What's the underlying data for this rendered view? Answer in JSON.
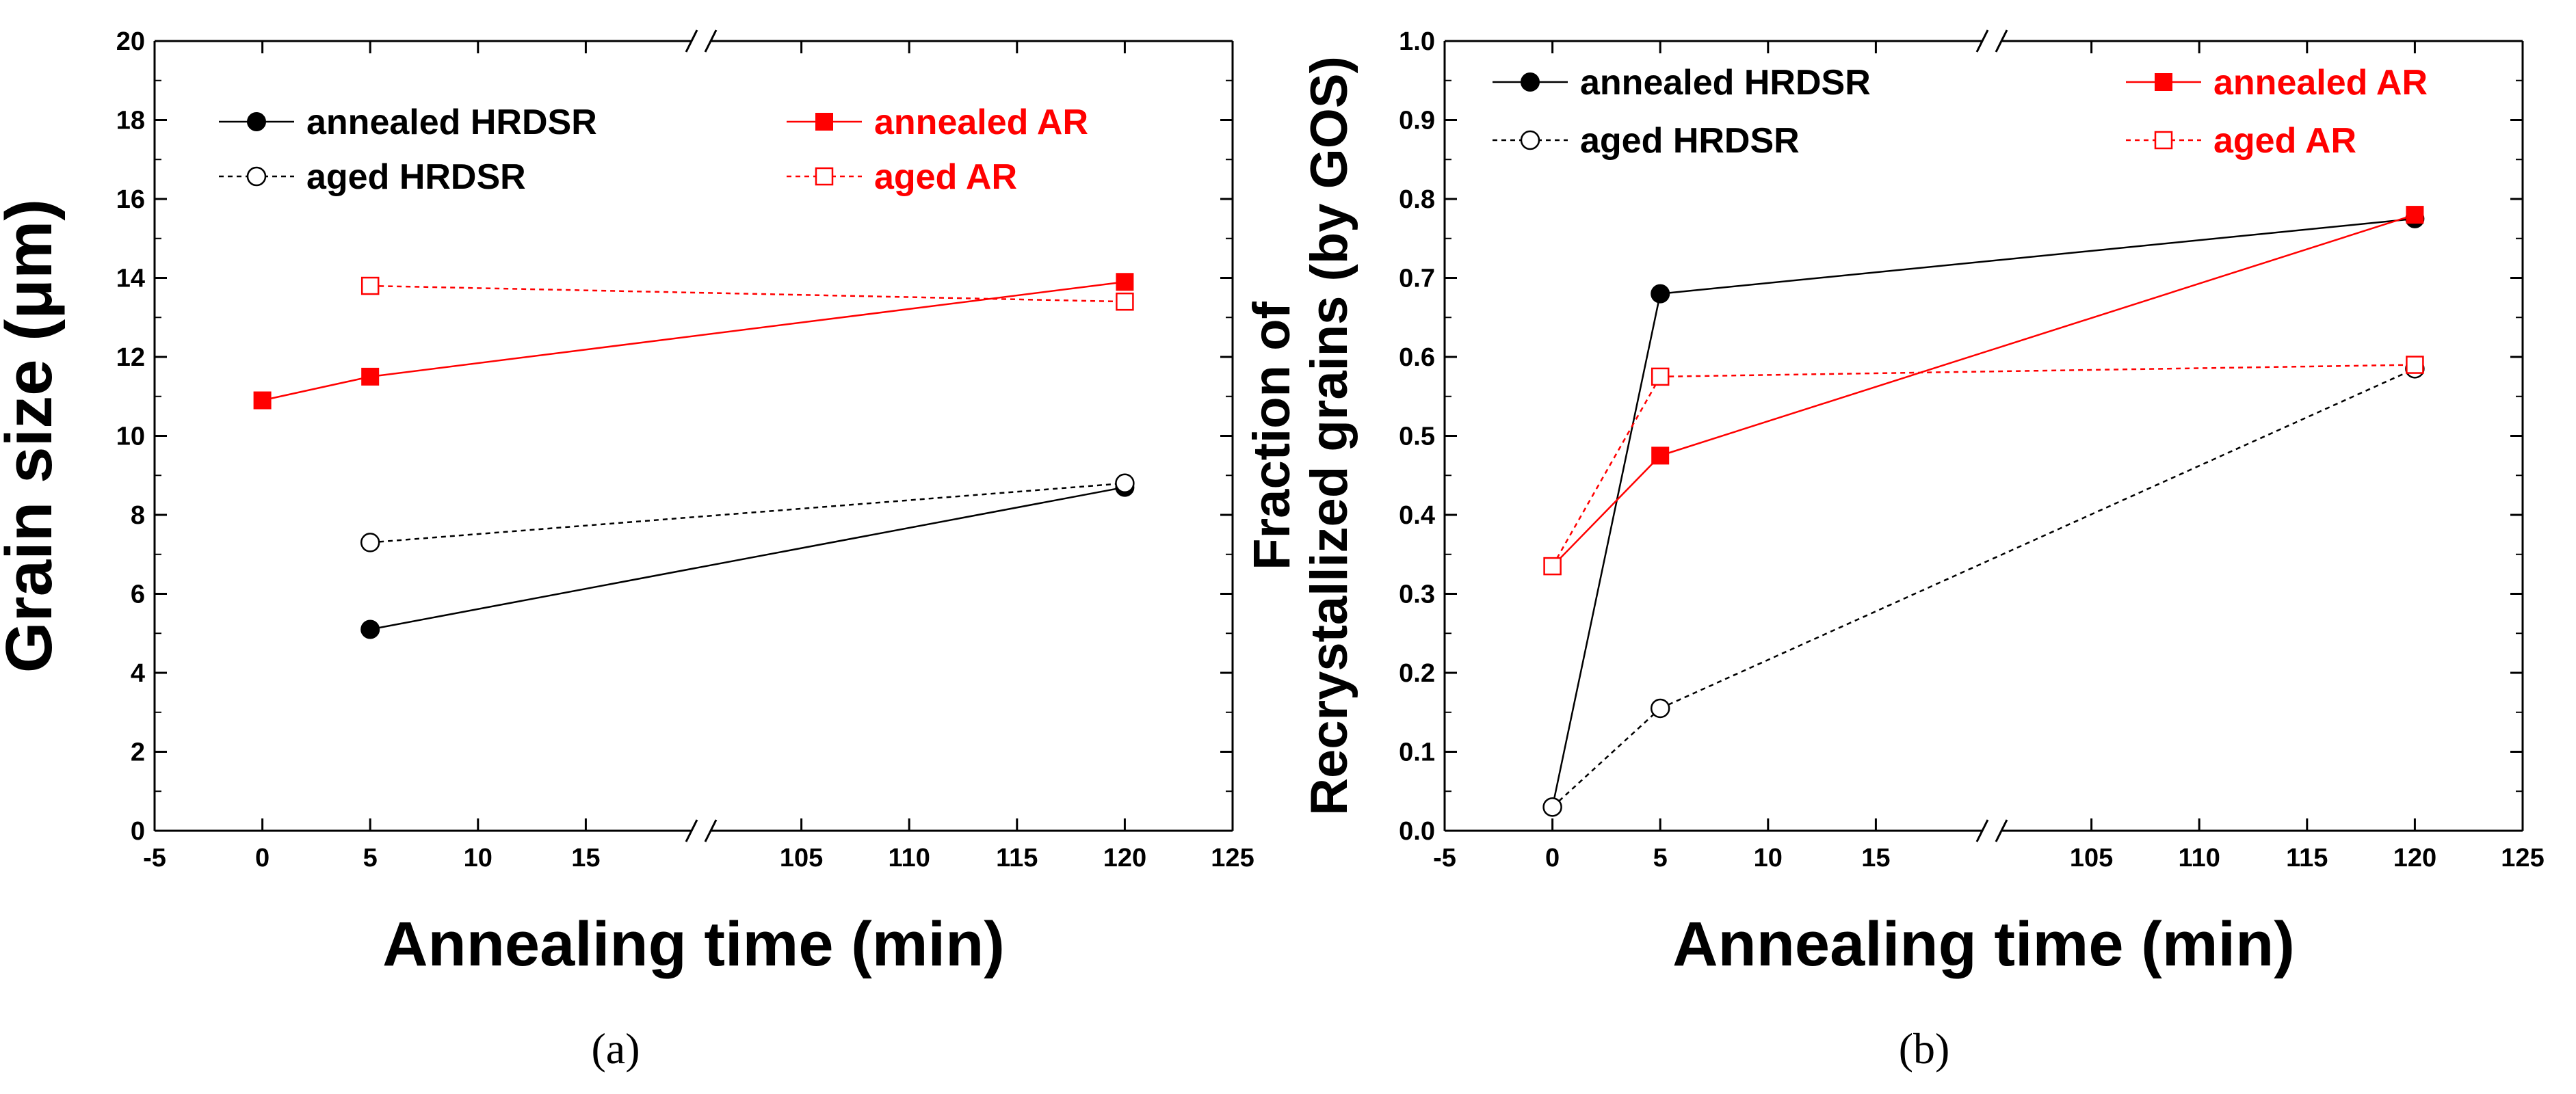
{
  "colors": {
    "black": "#000000",
    "red": "#ff0000"
  },
  "chart_data": [
    {
      "type": "line",
      "panel": "a",
      "caption": "(a)",
      "xlabel": "Annealing time (min)",
      "ylabel": "Grain size (μm)",
      "ylim": [
        0,
        20
      ],
      "yticks": [
        "0",
        "2",
        "4",
        "6",
        "8",
        "10",
        "12",
        "14",
        "16",
        "18",
        "20"
      ],
      "xticks": [
        "-5",
        "0",
        "5",
        "10",
        "15",
        "105",
        "110",
        "115",
        "120",
        "125"
      ],
      "axis_break": "//",
      "series": [
        {
          "name": "annealed HRDSR",
          "color": "#000000",
          "marker": "filled-circle",
          "dashed": false,
          "x": [
            5,
            120
          ],
          "values": [
            5.1,
            8.7
          ]
        },
        {
          "name": "aged HRDSR",
          "color": "#000000",
          "marker": "open-circle",
          "dashed": true,
          "x": [
            5,
            120
          ],
          "values": [
            7.3,
            8.8
          ]
        },
        {
          "name": "annealed AR",
          "color": "#ff0000",
          "marker": "filled-square",
          "dashed": false,
          "x": [
            0,
            5,
            120
          ],
          "values": [
            10.9,
            11.5,
            13.9
          ]
        },
        {
          "name": "aged AR",
          "color": "#ff0000",
          "marker": "open-square",
          "dashed": true,
          "x": [
            5,
            120
          ],
          "values": [
            13.8,
            13.4
          ]
        }
      ]
    },
    {
      "type": "line",
      "panel": "b",
      "caption": "(b)",
      "xlabel": "Annealing time (min)",
      "ylabel_line1": "Fraction of",
      "ylabel_line2": "Recrystallized grains (by GOS)",
      "ylim": [
        0,
        1
      ],
      "yticks": [
        "0.0",
        "0.1",
        "0.2",
        "0.3",
        "0.4",
        "0.5",
        "0.6",
        "0.7",
        "0.8",
        "0.9",
        "1.0"
      ],
      "xticks": [
        "-5",
        "0",
        "5",
        "10",
        "15",
        "105",
        "110",
        "115",
        "120",
        "125"
      ],
      "axis_break": "//",
      "series": [
        {
          "name": "annealed HRDSR",
          "color": "#000000",
          "marker": "filled-circle",
          "dashed": false,
          "x": [
            0,
            5,
            120
          ],
          "values": [
            0.03,
            0.68,
            0.775
          ]
        },
        {
          "name": "aged HRDSR",
          "color": "#000000",
          "marker": "open-circle",
          "dashed": true,
          "x": [
            0,
            5,
            120
          ],
          "values": [
            0.03,
            0.155,
            0.585
          ]
        },
        {
          "name": "annealed AR",
          "color": "#ff0000",
          "marker": "filled-square",
          "dashed": false,
          "x": [
            0,
            5,
            120
          ],
          "values": [
            0.335,
            0.475,
            0.78
          ]
        },
        {
          "name": "aged AR",
          "color": "#ff0000",
          "marker": "open-square",
          "dashed": true,
          "x": [
            0,
            5,
            120
          ],
          "values": [
            0.335,
            0.575,
            0.59
          ]
        }
      ]
    }
  ]
}
